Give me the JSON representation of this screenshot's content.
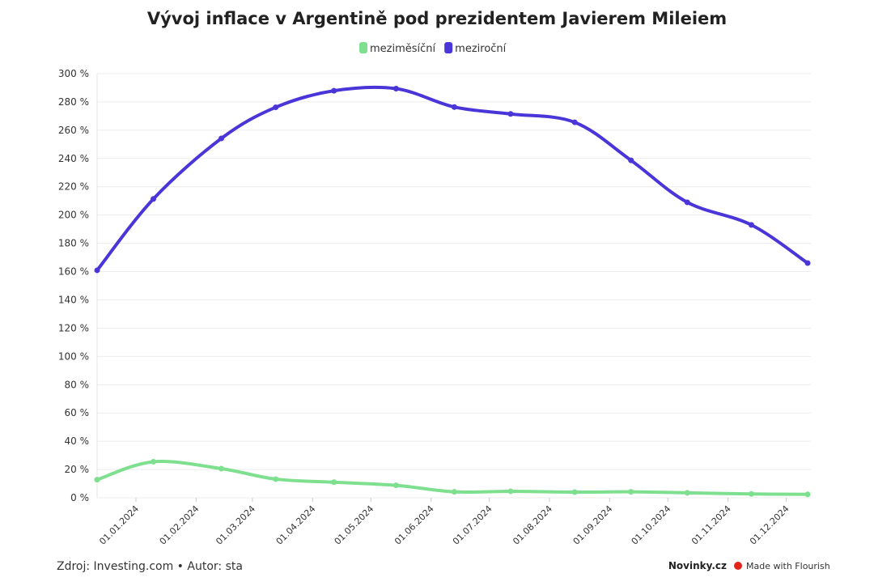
{
  "chart_data": {
    "type": "line",
    "title": "Vývoj inflace v Argentině pod prezidentem Javierem Mileiem",
    "x": [
      "2023-12-12",
      "2024-01-10",
      "2024-02-14",
      "2024-03-13",
      "2024-04-12",
      "2024-05-14",
      "2024-06-13",
      "2024-07-12",
      "2024-08-14",
      "2024-09-12",
      "2024-10-11",
      "2024-11-13",
      "2024-12-12"
    ],
    "series": [
      {
        "name": "meziměsíční",
        "color": "#7ee08f",
        "values": [
          12.8,
          25.5,
          20.6,
          13.2,
          11.0,
          8.8,
          4.2,
          4.6,
          4.0,
          4.2,
          3.5,
          2.7,
          2.4
        ]
      },
      {
        "name": "meziroční",
        "color": "#4a35d8",
        "values": [
          160.9,
          211.4,
          254.2,
          276.2,
          287.9,
          289.4,
          276.4,
          271.5,
          265.6,
          238.7,
          209.0,
          193.0,
          166.0
        ]
      }
    ],
    "xlim": [
      "2023-12-12",
      "2024-12-12"
    ],
    "xticks": [
      {
        "value": "2024-01-01",
        "label": "01.01.2024"
      },
      {
        "value": "2024-02-01",
        "label": "01.02.2024"
      },
      {
        "value": "2024-03-01",
        "label": "01.03.2024"
      },
      {
        "value": "2024-04-01",
        "label": "01.04.2024"
      },
      {
        "value": "2024-05-01",
        "label": "01.05.2024"
      },
      {
        "value": "2024-06-01",
        "label": "01.06.2024"
      },
      {
        "value": "2024-07-01",
        "label": "01.07.2024"
      },
      {
        "value": "2024-08-01",
        "label": "01.08.2024"
      },
      {
        "value": "2024-09-01",
        "label": "01.09.2024"
      },
      {
        "value": "2024-10-01",
        "label": "01.10.2024"
      },
      {
        "value": "2024-11-01",
        "label": "01.11.2024"
      },
      {
        "value": "2024-12-01",
        "label": "01.12.2024"
      }
    ],
    "ylim": [
      0,
      300
    ],
    "yticks": [
      {
        "value": 0,
        "label": "0 %"
      },
      {
        "value": 20,
        "label": "20 %"
      },
      {
        "value": 40,
        "label": "40 %"
      },
      {
        "value": 60,
        "label": "60 %"
      },
      {
        "value": 80,
        "label": "80 %"
      },
      {
        "value": 100,
        "label": "100 %"
      },
      {
        "value": 120,
        "label": "120 %"
      },
      {
        "value": 140,
        "label": "140 %"
      },
      {
        "value": 160,
        "label": "160 %"
      },
      {
        "value": 180,
        "label": "180 %"
      },
      {
        "value": 200,
        "label": "200 %"
      },
      {
        "value": 220,
        "label": "220 %"
      },
      {
        "value": 240,
        "label": "240 %"
      },
      {
        "value": 260,
        "label": "260 %"
      },
      {
        "value": 280,
        "label": "280 %"
      },
      {
        "value": 300,
        "label": "300 %"
      }
    ],
    "grid": true,
    "source": "Zdroj: Investing.com • Autor: sta",
    "brand": "Novinky.cz",
    "credit": "Made with Flourish"
  }
}
